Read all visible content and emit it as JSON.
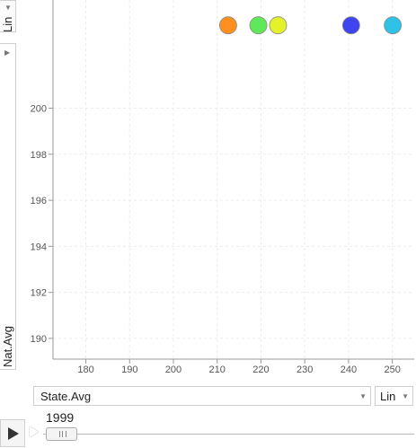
{
  "y_axis": {
    "scale_label": "Lin",
    "variable_label": "Nat.Avg"
  },
  "x_axis": {
    "variable_label": "State.Avg",
    "scale_label": "Lin"
  },
  "playback": {
    "year": "1999"
  },
  "colors": {
    "grid": "#ececec",
    "axis": "#999999",
    "tick_text": "#555555"
  },
  "chart_data": {
    "type": "scatter",
    "title": "",
    "xlabel": "State.Avg",
    "ylabel": "Nat.Avg",
    "xlim": [
      172.5,
      255
    ],
    "ylim": [
      189.1,
      204.7
    ],
    "x_ticks": [
      180,
      190,
      200,
      210,
      220,
      230,
      240,
      250
    ],
    "y_ticks": [
      190,
      192,
      194,
      196,
      198,
      200
    ],
    "grid": true,
    "series": [
      {
        "x": 212.5,
        "y": 203.6,
        "color": "#ff8f1f"
      },
      {
        "x": 219.4,
        "y": 203.6,
        "color": "#5ee85a"
      },
      {
        "x": 223.9,
        "y": 203.6,
        "color": "#e4f22a"
      },
      {
        "x": 240.6,
        "y": 203.6,
        "color": "#3d44f0"
      },
      {
        "x": 250.1,
        "y": 203.6,
        "color": "#2ec2e6"
      }
    ]
  }
}
